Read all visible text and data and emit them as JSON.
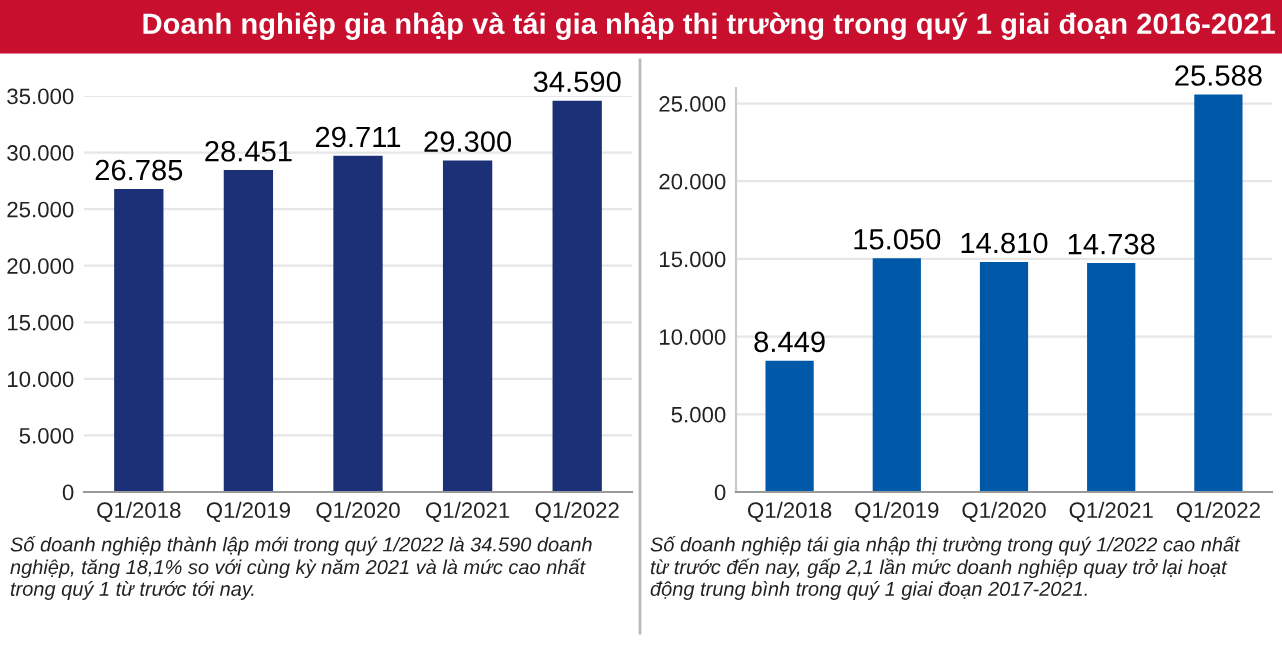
{
  "chart_data": [
    {
      "type": "bar",
      "title": "Doanh nghiệp gia nhập và tái gia nhập thị trường trong quý 1 giai đoạn 2016-2021",
      "categories": [
        "Q1/2018",
        "Q1/2019",
        "Q1/2020",
        "Q1/2021",
        "Q1/2022"
      ],
      "values": [
        26785,
        28451,
        29711,
        29300,
        34590
      ],
      "value_labels": [
        "26.785",
        "28.451",
        "29.711",
        "29.300",
        "34.590"
      ],
      "color": "#1c3078",
      "ylim": [
        0,
        35000
      ],
      "yticks": [
        0,
        {
          "value": 5000,
          "label": "5.000"
        },
        {
          "value": 10000,
          "label": "10.000"
        },
        {
          "value": 15000,
          "label": "15.000"
        },
        {
          "value": 20000,
          "label": "20.000"
        },
        {
          "value": 25000,
          "label": "25.000"
        },
        {
          "value": 30000,
          "label": "30.000"
        },
        {
          "value": 35000,
          "label": "35.000"
        }
      ],
      "grid": "y",
      "annotations": [
        "Số doanh nghiệp thành lập mới trong quý 1/2022 là 34.590 doanh nghiệp, tăng 18,1% so với cùng kỳ năm 2021 và là mức cao nhất trong quý 1 từ trước tới nay."
      ]
    },
    {
      "type": "bar",
      "categories": [
        "Q1/2018",
        "Q1/2019",
        "Q1/2020",
        "Q1/2021",
        "Q1/2022"
      ],
      "values": [
        8449,
        15050,
        14810,
        14738,
        25588
      ],
      "value_labels": [
        "8.449",
        "15.050",
        "14.810",
        "14.738",
        "25.588"
      ],
      "color": "#0058a8",
      "ylim": [
        0,
        26000
      ],
      "yticks": [
        0,
        {
          "value": 5000,
          "label": "5.000"
        },
        {
          "value": 10000,
          "label": "10.000"
        },
        {
          "value": 15000,
          "label": "15.000"
        },
        {
          "value": 20000,
          "label": "20.000"
        },
        {
          "value": 25000,
          "label": "25.000"
        }
      ],
      "grid": "y",
      "annotations": [
        "Số doanh nghiệp tái gia nhập thị trường trong quý 1/2022 cao nhất từ trước đến nay, gấp 2,1 lần mức doanh nghiệp quay trở lại hoạt động trung bình trong quý 1 giai đoạn 2017-2021."
      ]
    }
  ]
}
